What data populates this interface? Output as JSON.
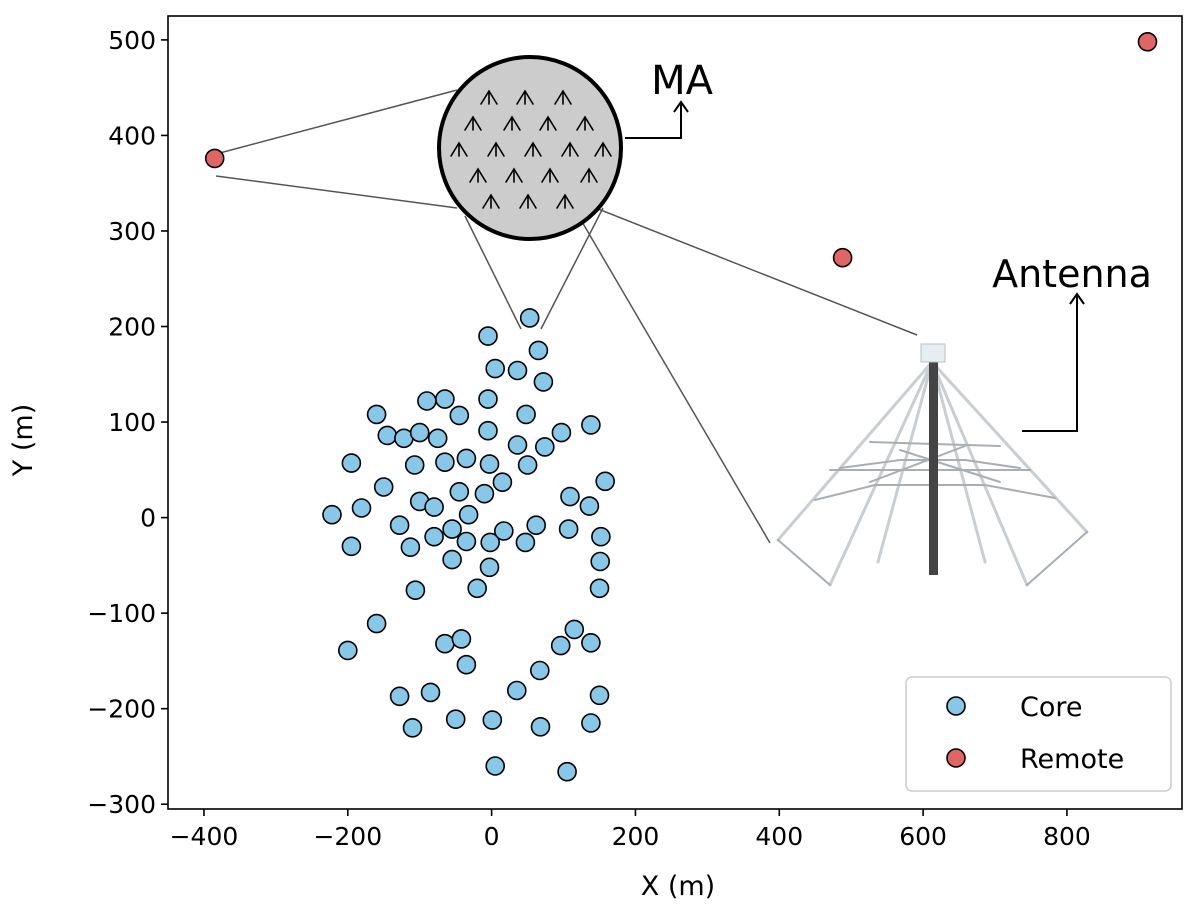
{
  "chart_data": {
    "type": "scatter",
    "title": "",
    "xlabel": "X (m)",
    "ylabel": "Y (m)",
    "xlim": [
      -450,
      960
    ],
    "ylim": [
      -305,
      525
    ],
    "xticks": [
      -400,
      -200,
      0,
      200,
      400,
      600,
      800
    ],
    "yticks": [
      -300,
      -200,
      -100,
      0,
      100,
      200,
      300,
      400,
      500
    ],
    "grid": false,
    "legend_position": "bottom-right",
    "series": [
      {
        "name": "Core",
        "color": "#87c8e8",
        "points": [
          [
            53,
            209
          ],
          [
            -5,
            190
          ],
          [
            65,
            175
          ],
          [
            5,
            156
          ],
          [
            36,
            154
          ],
          [
            72,
            142
          ],
          [
            -90,
            122
          ],
          [
            -65,
            124
          ],
          [
            -5,
            124
          ],
          [
            -160,
            108
          ],
          [
            -45,
            107
          ],
          [
            48,
            108
          ],
          [
            -145,
            86
          ],
          [
            -122,
            83
          ],
          [
            -100,
            89
          ],
          [
            -75,
            83
          ],
          [
            -5,
            91
          ],
          [
            36,
            76
          ],
          [
            97,
            89
          ],
          [
            138,
            97
          ],
          [
            74,
            74
          ],
          [
            -195,
            57
          ],
          [
            -107,
            55
          ],
          [
            -65,
            58
          ],
          [
            -35,
            62
          ],
          [
            -3,
            56
          ],
          [
            50,
            55
          ],
          [
            -150,
            32
          ],
          [
            -181,
            10
          ],
          [
            -100,
            17
          ],
          [
            -80,
            11
          ],
          [
            -45,
            27
          ],
          [
            -10,
            25
          ],
          [
            15,
            37
          ],
          [
            109,
            22
          ],
          [
            136,
            12
          ],
          [
            158,
            38
          ],
          [
            -222,
            3
          ],
          [
            -128,
            -8
          ],
          [
            -32,
            3
          ],
          [
            -195,
            -30
          ],
          [
            -113,
            -31
          ],
          [
            -80,
            -20
          ],
          [
            -55,
            -12
          ],
          [
            -35,
            -25
          ],
          [
            -2,
            -26
          ],
          [
            17,
            -14
          ],
          [
            47,
            -26
          ],
          [
            62,
            -8
          ],
          [
            107,
            -12
          ],
          [
            152,
            -20
          ],
          [
            -55,
            -44
          ],
          [
            -3,
            -52
          ],
          [
            151,
            -46
          ],
          [
            -20,
            -74
          ],
          [
            -106,
            -76
          ],
          [
            150,
            -74
          ],
          [
            -160,
            -111
          ],
          [
            -200,
            -139
          ],
          [
            -65,
            -132
          ],
          [
            -42,
            -127
          ],
          [
            -35,
            -154
          ],
          [
            67,
            -160
          ],
          [
            96,
            -134
          ],
          [
            115,
            -117
          ],
          [
            138,
            -131
          ],
          [
            -128,
            -187
          ],
          [
            -85,
            -183
          ],
          [
            35,
            -181
          ],
          [
            150,
            -186
          ],
          [
            -110,
            -220
          ],
          [
            -50,
            -211
          ],
          [
            1,
            -212
          ],
          [
            68,
            -219
          ],
          [
            138,
            -215
          ],
          [
            5,
            -260
          ],
          [
            105,
            -266
          ]
        ]
      },
      {
        "name": "Remote",
        "color": "#e06666",
        "points": [
          [
            -385,
            376
          ],
          [
            488,
            272
          ],
          [
            912,
            498
          ]
        ]
      }
    ],
    "annotations": [
      {
        "text": "MA",
        "target": "circular station inset"
      },
      {
        "text": "Antenna",
        "target": "antenna photo inset"
      }
    ]
  }
}
